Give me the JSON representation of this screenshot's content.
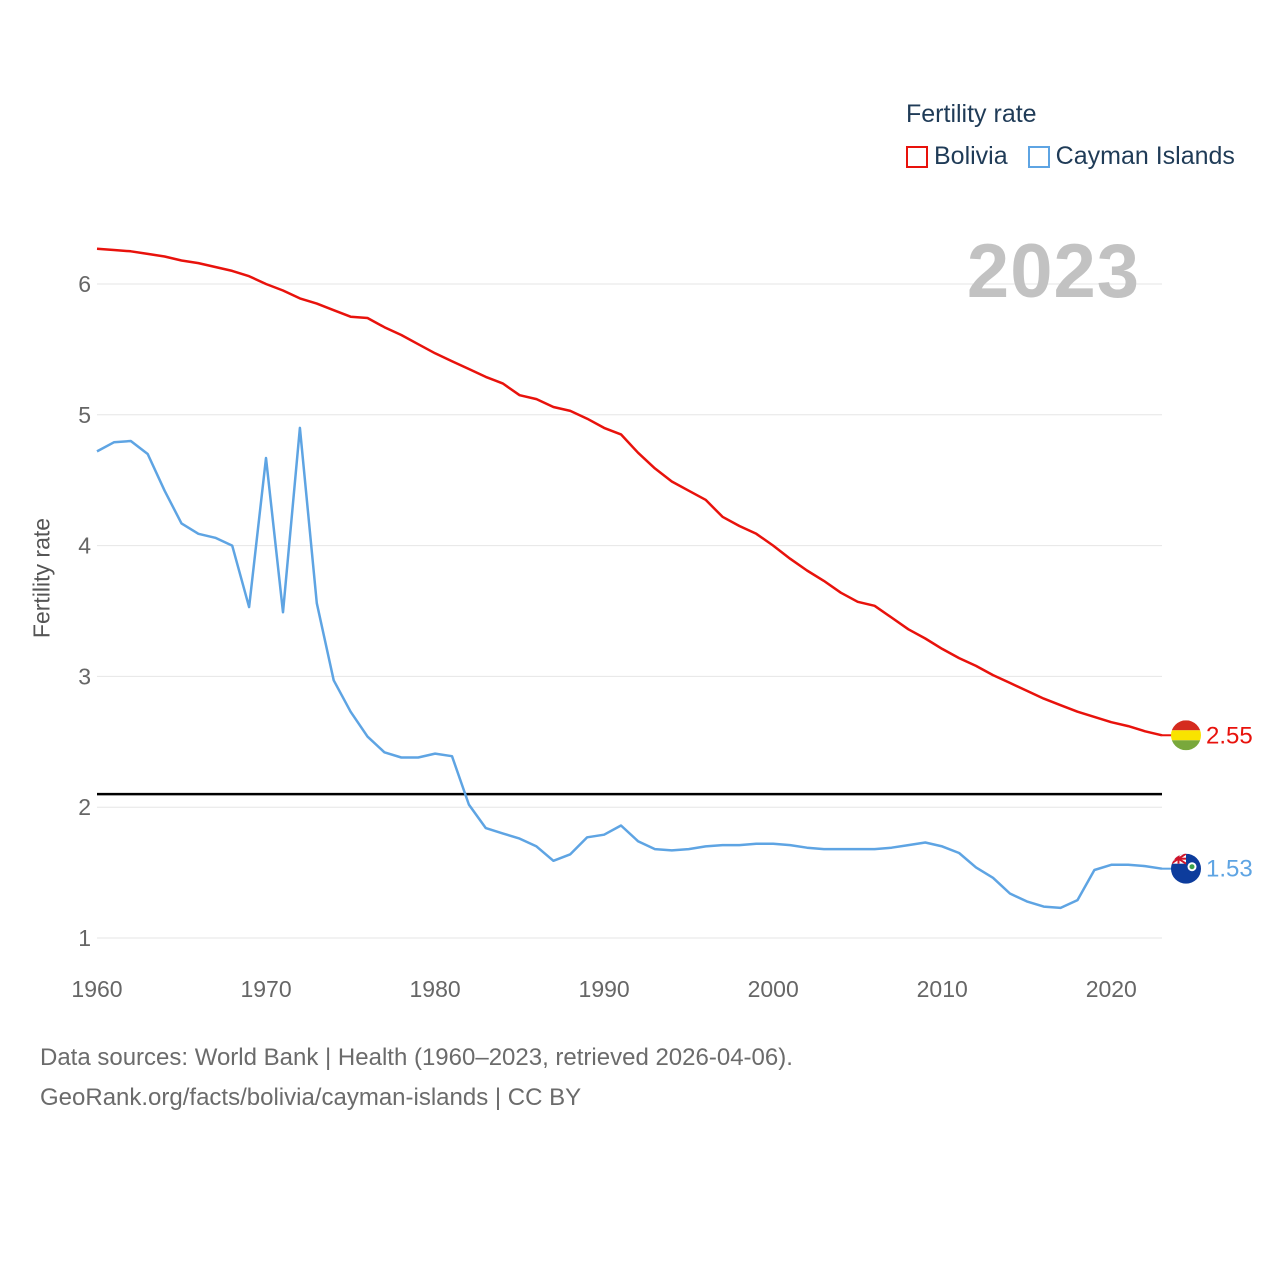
{
  "legend": {
    "title": "Fertility rate",
    "items": [
      {
        "label": "Bolivia",
        "color": "#e8120c"
      },
      {
        "label": "Cayman Islands",
        "color": "#5ea4e3"
      }
    ]
  },
  "year_label": "2023",
  "footer": {
    "line1": "Data sources: World Bank | Health (1960–2023, retrieved 2026-04-06).",
    "line2": "GeoRank.org/facts/bolivia/cayman-islands | CC BY"
  },
  "chart_data": {
    "type": "line",
    "title": "",
    "xlabel": "",
    "ylabel": "Fertility rate",
    "xlim": [
      1960,
      2023
    ],
    "ylim": [
      1,
      6.5
    ],
    "yticks": [
      1,
      2,
      3,
      4,
      5,
      6
    ],
    "xticks": [
      1960,
      1970,
      1980,
      1990,
      2000,
      2010,
      2020
    ],
    "reference_line": {
      "y": 2.1,
      "color": "#000000"
    },
    "x": [
      1960,
      1961,
      1962,
      1963,
      1964,
      1965,
      1966,
      1967,
      1968,
      1969,
      1970,
      1971,
      1972,
      1973,
      1974,
      1975,
      1976,
      1977,
      1978,
      1979,
      1980,
      1981,
      1982,
      1983,
      1984,
      1985,
      1986,
      1987,
      1988,
      1989,
      1990,
      1991,
      1992,
      1993,
      1994,
      1995,
      1996,
      1997,
      1998,
      1999,
      2000,
      2001,
      2002,
      2003,
      2004,
      2005,
      2006,
      2007,
      2008,
      2009,
      2010,
      2011,
      2012,
      2013,
      2014,
      2015,
      2016,
      2017,
      2018,
      2019,
      2020,
      2021,
      2022,
      2023
    ],
    "series": [
      {
        "name": "Bolivia",
        "color": "#e8120c",
        "end_label": "2.55",
        "values": [
          6.27,
          6.26,
          6.25,
          6.23,
          6.21,
          6.18,
          6.16,
          6.13,
          6.1,
          6.06,
          6.0,
          5.95,
          5.89,
          5.85,
          5.8,
          5.75,
          5.74,
          5.67,
          5.61,
          5.54,
          5.47,
          5.41,
          5.35,
          5.29,
          5.24,
          5.15,
          5.12,
          5.06,
          5.03,
          4.97,
          4.9,
          4.85,
          4.71,
          4.59,
          4.49,
          4.42,
          4.35,
          4.22,
          4.15,
          4.09,
          4.0,
          3.9,
          3.81,
          3.73,
          3.64,
          3.57,
          3.54,
          3.45,
          3.36,
          3.29,
          3.21,
          3.14,
          3.08,
          3.01,
          2.95,
          2.89,
          2.83,
          2.78,
          2.73,
          2.69,
          2.65,
          2.62,
          2.58,
          2.55
        ]
      },
      {
        "name": "Cayman Islands",
        "color": "#5ea4e3",
        "end_label": "1.53",
        "values": [
          4.72,
          4.79,
          4.8,
          4.7,
          4.42,
          4.17,
          4.09,
          4.06,
          4.0,
          3.53,
          4.67,
          3.49,
          4.9,
          3.56,
          2.97,
          2.73,
          2.54,
          2.42,
          2.38,
          2.38,
          2.41,
          2.39,
          2.02,
          1.84,
          1.8,
          1.76,
          1.7,
          1.59,
          1.64,
          1.77,
          1.79,
          1.86,
          1.74,
          1.68,
          1.67,
          1.68,
          1.7,
          1.71,
          1.71,
          1.72,
          1.72,
          1.71,
          1.69,
          1.68,
          1.68,
          1.68,
          1.68,
          1.69,
          1.71,
          1.73,
          1.7,
          1.65,
          1.54,
          1.46,
          1.34,
          1.28,
          1.24,
          1.23,
          1.29,
          1.52,
          1.56,
          1.56,
          1.55,
          1.53
        ]
      }
    ]
  }
}
